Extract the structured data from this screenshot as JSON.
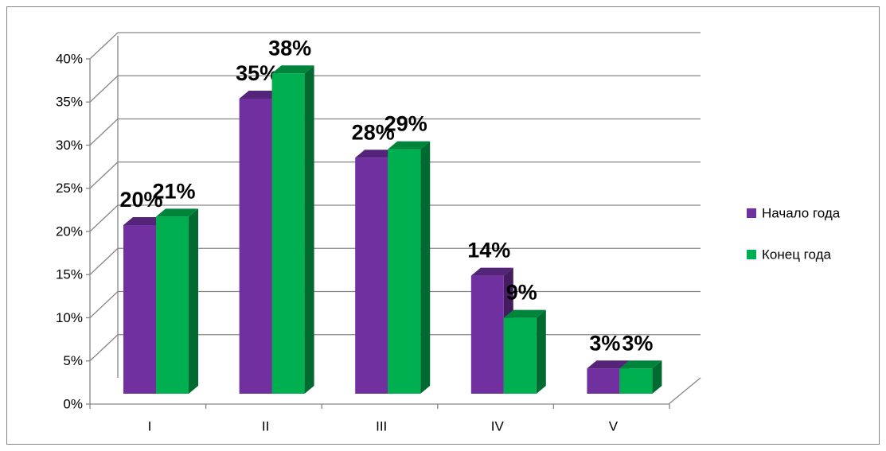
{
  "chart_data": {
    "type": "bar3d",
    "categories": [
      "I",
      "II",
      "III",
      "IV",
      "V"
    ],
    "series": [
      {
        "name": "Начало года",
        "color": "#7030a0",
        "values": [
          20,
          35,
          28,
          14,
          3
        ],
        "value_labels": [
          "20%",
          "35%",
          "28%",
          "14%",
          "3%"
        ]
      },
      {
        "name": "Конец года",
        "color": "#00b050",
        "values": [
          21,
          38,
          29,
          9,
          3
        ],
        "value_labels": [
          "21%",
          "38%",
          "29%",
          "9%",
          "3%"
        ]
      }
    ],
    "ylim": [
      0,
      40
    ],
    "yticks": [
      {
        "value": 0,
        "label": "0%"
      },
      {
        "value": 5,
        "label": "5%"
      },
      {
        "value": 10,
        "label": "10%"
      },
      {
        "value": 15,
        "label": "15%"
      },
      {
        "value": 20,
        "label": "20%"
      },
      {
        "value": 25,
        "label": "25%"
      },
      {
        "value": 30,
        "label": "30%"
      },
      {
        "value": 35,
        "label": "35%"
      },
      {
        "value": 40,
        "label": "40%"
      }
    ],
    "grid": true,
    "legend": "right"
  }
}
